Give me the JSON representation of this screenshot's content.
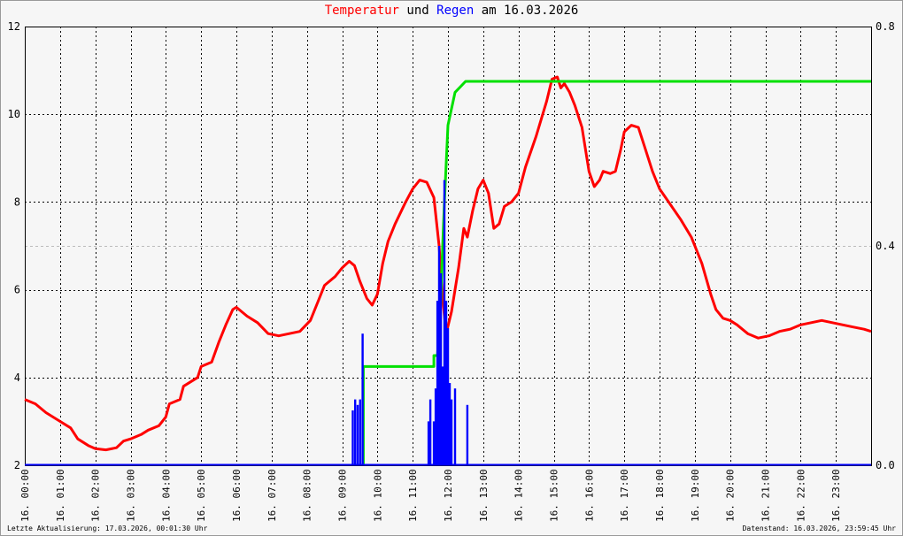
{
  "header": {
    "title_part1": "Temperatur",
    "title_part2": " und ",
    "title_part3": "Regen",
    "title_part4": " am 16.03.2026"
  },
  "footer": {
    "left": "Letzte Aktualisierung: 17.03.2026, 00:01:30 Uhr",
    "right": "Datenstand: 16.03.2026, 23:59:45 Uhr"
  },
  "colors": {
    "temperature": "#ff0000",
    "rain_sum": "#00e000",
    "rain_rate": "#0000ff",
    "title_temp": "#ff0000",
    "title_rain": "#0000ff"
  },
  "chart_data": {
    "type": "line",
    "x_unit": "hour of day 16.03.2026",
    "xlim": [
      0,
      24
    ],
    "x_tick_labels": [
      "16. 00:00",
      "16. 01:00",
      "16. 02:00",
      "16. 03:00",
      "16. 04:00",
      "16. 05:00",
      "16. 06:00",
      "16. 07:00",
      "16. 08:00",
      "16. 09:00",
      "16. 10:00",
      "16. 11:00",
      "16. 12:00",
      "16. 13:00",
      "16. 14:00",
      "16. 15:00",
      "16. 16:00",
      "16. 17:00",
      "16. 18:00",
      "16. 19:00",
      "16. 20:00",
      "16. 21:00",
      "16. 22:00",
      "16. 23:00"
    ],
    "y_left": {
      "ylim": [
        2,
        12
      ],
      "ticks": [
        "2",
        "4",
        "6",
        "8",
        "10",
        "12"
      ]
    },
    "y_right": {
      "ylim": [
        0.0,
        0.8
      ],
      "ticks": [
        "0.0",
        "0.4",
        "0.8"
      ]
    },
    "grid": true,
    "series": [
      {
        "key": "temperature",
        "axis": "left",
        "points": [
          [
            0,
            3.5
          ],
          [
            0.3,
            3.4
          ],
          [
            0.6,
            3.2
          ],
          [
            1.0,
            3.0
          ],
          [
            1.3,
            2.85
          ],
          [
            1.5,
            2.6
          ],
          [
            1.8,
            2.45
          ],
          [
            2.0,
            2.38
          ],
          [
            2.3,
            2.35
          ],
          [
            2.6,
            2.4
          ],
          [
            2.8,
            2.55
          ],
          [
            3.0,
            2.6
          ],
          [
            3.3,
            2.7
          ],
          [
            3.5,
            2.8
          ],
          [
            3.8,
            2.9
          ],
          [
            4.0,
            3.1
          ],
          [
            4.1,
            3.4
          ],
          [
            4.4,
            3.5
          ],
          [
            4.5,
            3.8
          ],
          [
            4.9,
            4.0
          ],
          [
            5.0,
            4.25
          ],
          [
            5.3,
            4.35
          ],
          [
            5.5,
            4.8
          ],
          [
            5.7,
            5.2
          ],
          [
            5.9,
            5.55
          ],
          [
            6.0,
            5.6
          ],
          [
            6.3,
            5.4
          ],
          [
            6.6,
            5.25
          ],
          [
            6.9,
            5.0
          ],
          [
            7.2,
            4.95
          ],
          [
            7.5,
            5.0
          ],
          [
            7.8,
            5.05
          ],
          [
            8.1,
            5.3
          ],
          [
            8.3,
            5.7
          ],
          [
            8.5,
            6.1
          ],
          [
            8.8,
            6.3
          ],
          [
            9.0,
            6.5
          ],
          [
            9.2,
            6.65
          ],
          [
            9.35,
            6.55
          ],
          [
            9.5,
            6.2
          ],
          [
            9.7,
            5.8
          ],
          [
            9.85,
            5.65
          ],
          [
            10.0,
            5.9
          ],
          [
            10.15,
            6.6
          ],
          [
            10.3,
            7.1
          ],
          [
            10.5,
            7.5
          ],
          [
            10.8,
            8.0
          ],
          [
            11.0,
            8.3
          ],
          [
            11.2,
            8.5
          ],
          [
            11.4,
            8.45
          ],
          [
            11.6,
            8.1
          ],
          [
            11.75,
            7.0
          ],
          [
            11.85,
            5.8
          ],
          [
            11.95,
            5.0
          ],
          [
            12.1,
            5.5
          ],
          [
            12.3,
            6.5
          ],
          [
            12.45,
            7.4
          ],
          [
            12.55,
            7.2
          ],
          [
            12.7,
            7.8
          ],
          [
            12.85,
            8.3
          ],
          [
            13.0,
            8.5
          ],
          [
            13.15,
            8.2
          ],
          [
            13.3,
            7.4
          ],
          [
            13.45,
            7.5
          ],
          [
            13.6,
            7.9
          ],
          [
            13.8,
            8.0
          ],
          [
            14.0,
            8.2
          ],
          [
            14.2,
            8.8
          ],
          [
            14.5,
            9.5
          ],
          [
            14.8,
            10.3
          ],
          [
            14.95,
            10.8
          ],
          [
            15.1,
            10.85
          ],
          [
            15.2,
            10.6
          ],
          [
            15.3,
            10.7
          ],
          [
            15.45,
            10.5
          ],
          [
            15.6,
            10.2
          ],
          [
            15.8,
            9.7
          ],
          [
            16.0,
            8.7
          ],
          [
            16.15,
            8.35
          ],
          [
            16.3,
            8.5
          ],
          [
            16.4,
            8.7
          ],
          [
            16.6,
            8.65
          ],
          [
            16.75,
            8.7
          ],
          [
            16.9,
            9.2
          ],
          [
            17.0,
            9.6
          ],
          [
            17.2,
            9.75
          ],
          [
            17.4,
            9.7
          ],
          [
            17.6,
            9.2
          ],
          [
            17.8,
            8.7
          ],
          [
            18.0,
            8.3
          ],
          [
            18.3,
            7.95
          ],
          [
            18.6,
            7.6
          ],
          [
            18.9,
            7.2
          ],
          [
            19.2,
            6.6
          ],
          [
            19.45,
            5.9
          ],
          [
            19.6,
            5.55
          ],
          [
            19.8,
            5.35
          ],
          [
            20.0,
            5.3
          ],
          [
            20.2,
            5.2
          ],
          [
            20.5,
            5.0
          ],
          [
            20.8,
            4.9
          ],
          [
            21.1,
            4.95
          ],
          [
            21.4,
            5.05
          ],
          [
            21.7,
            5.1
          ],
          [
            22.0,
            5.2
          ],
          [
            22.3,
            5.25
          ],
          [
            22.6,
            5.3
          ],
          [
            22.9,
            5.25
          ],
          [
            23.2,
            5.2
          ],
          [
            23.5,
            5.15
          ],
          [
            23.8,
            5.1
          ],
          [
            24.0,
            5.05
          ]
        ]
      },
      {
        "key": "rain_sum",
        "axis": "right",
        "points": [
          [
            9.6,
            0.0
          ],
          [
            9.6,
            0.18
          ],
          [
            11.6,
            0.18
          ],
          [
            11.6,
            0.2
          ],
          [
            11.7,
            0.2
          ],
          [
            11.8,
            0.3
          ],
          [
            11.85,
            0.4
          ],
          [
            11.9,
            0.48
          ],
          [
            11.95,
            0.55
          ],
          [
            12.0,
            0.62
          ],
          [
            12.1,
            0.65
          ],
          [
            12.2,
            0.68
          ],
          [
            12.5,
            0.7
          ],
          [
            24.0,
            0.7
          ]
        ]
      },
      {
        "key": "rain_rate",
        "axis": "right",
        "bars": [
          [
            9.3,
            0.1
          ],
          [
            9.37,
            0.12
          ],
          [
            9.44,
            0.11
          ],
          [
            9.51,
            0.12
          ],
          [
            9.58,
            0.24
          ],
          [
            11.45,
            0.08
          ],
          [
            11.5,
            0.12
          ],
          [
            11.6,
            0.08
          ],
          [
            11.65,
            0.14
          ],
          [
            11.7,
            0.3
          ],
          [
            11.75,
            0.4
          ],
          [
            11.8,
            0.35
          ],
          [
            11.85,
            0.18
          ],
          [
            11.9,
            0.52
          ],
          [
            11.95,
            0.3
          ],
          [
            12.0,
            0.25
          ],
          [
            12.05,
            0.15
          ],
          [
            12.1,
            0.12
          ],
          [
            12.2,
            0.14
          ],
          [
            12.55,
            0.11
          ]
        ]
      }
    ]
  }
}
